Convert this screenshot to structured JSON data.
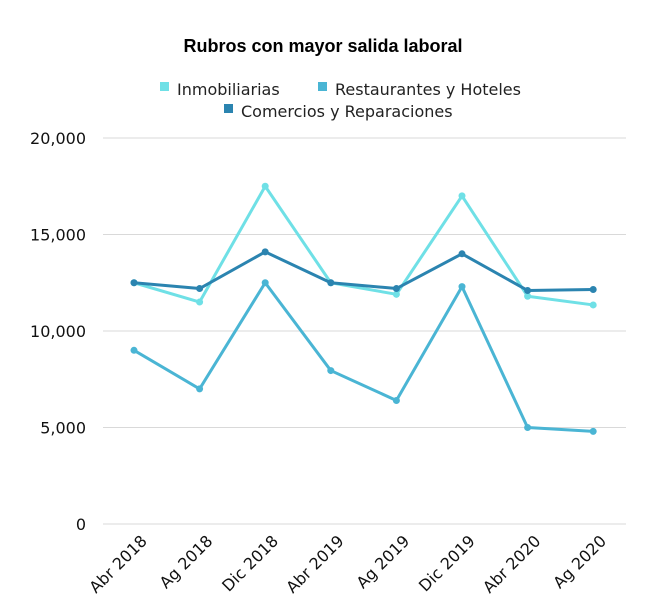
{
  "chart_data": {
    "type": "line",
    "title": "Rubros con mayor salida laboral",
    "xlabel": "",
    "ylabel": "",
    "categories": [
      "Abr 2018",
      "Ag 2018",
      "Dic 2018",
      "Abr 2019",
      "Ag 2019",
      "Dic 2019",
      "Abr 2020",
      "Ag 2020"
    ],
    "ylim": [
      0,
      20000
    ],
    "yticks": [
      "0",
      "5,000",
      "10,000",
      "15,000",
      "20,000"
    ],
    "grid": true,
    "legend_position": "top",
    "series": [
      {
        "name": "Inmobiliarias",
        "color": "#6fe0e6",
        "values": [
          12500,
          11500,
          17500,
          12500,
          11900,
          17000,
          11800,
          11350
        ]
      },
      {
        "name": "Restaurantes y Hoteles",
        "color": "#4ab5d4",
        "values": [
          9000,
          7000,
          12500,
          7950,
          6400,
          12300,
          5000,
          4800
        ]
      },
      {
        "name": "Comercios y Reparaciones",
        "color": "#2b84b0",
        "values": [
          12500,
          12200,
          14100,
          12500,
          12200,
          14000,
          12100,
          12150
        ]
      }
    ]
  }
}
